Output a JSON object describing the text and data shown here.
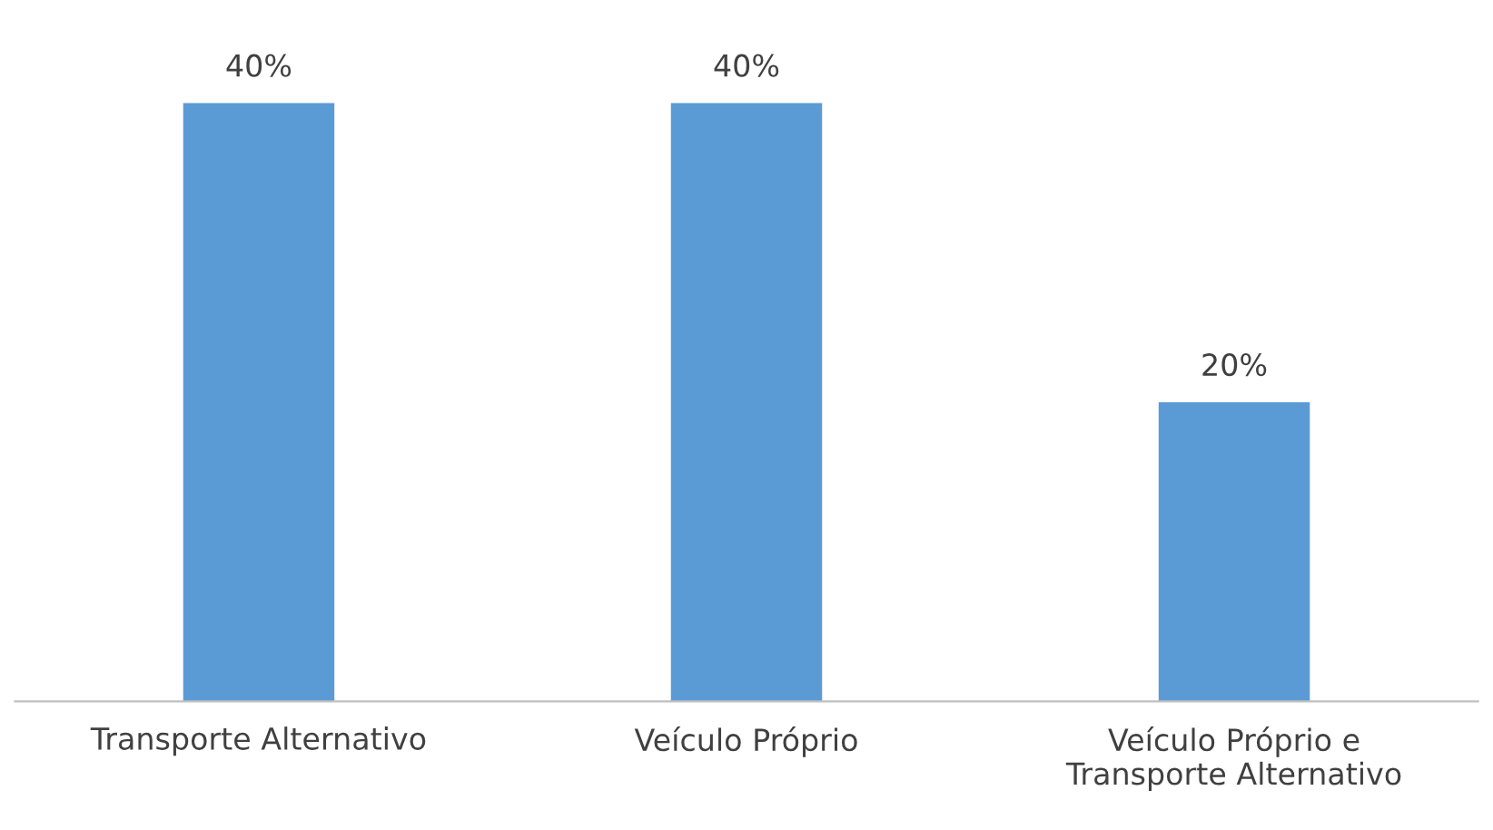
{
  "chart_data": {
    "type": "bar",
    "categories": [
      "Transporte Alternativo",
      "Veículo Próprio",
      "Veículo Próprio e\nTransporte Alternativo"
    ],
    "values": [
      40,
      40,
      20
    ],
    "value_labels": [
      "40%",
      "40%",
      "20%"
    ],
    "color": "#5b9bd5",
    "grid": false,
    "legend": false
  }
}
